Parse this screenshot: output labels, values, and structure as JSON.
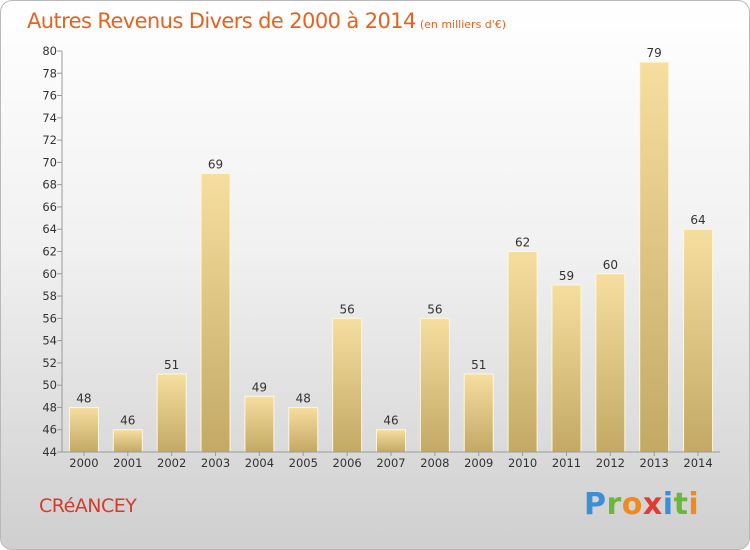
{
  "header": {
    "title": "Autres Revenus Divers de 2000 à 2014",
    "subtitle": "(en milliers d'€)"
  },
  "footer": {
    "commune": "CRéANCEY",
    "brand_letters": [
      {
        "char": "P",
        "color": "#3a8fd8"
      },
      {
        "char": "r",
        "color": "#6bb73a"
      },
      {
        "char": "o",
        "color": "#f08a1d"
      },
      {
        "char": "x",
        "color": "#e23c31"
      },
      {
        "char": "i",
        "color": "#3a8fd8"
      },
      {
        "char": "t",
        "color": "#6bb73a"
      },
      {
        "char": "i",
        "color": "#f08a1d"
      }
    ]
  },
  "chart_data": {
    "type": "bar",
    "categories": [
      "2000",
      "2001",
      "2002",
      "2003",
      "2004",
      "2005",
      "2006",
      "2007",
      "2008",
      "2009",
      "2010",
      "2011",
      "2012",
      "2013",
      "2014"
    ],
    "values": [
      48,
      46,
      51,
      69,
      49,
      48,
      56,
      46,
      56,
      51,
      62,
      59,
      60,
      79,
      64
    ],
    "ylim": [
      44,
      80
    ],
    "ytick_step": 2,
    "grid": false,
    "bar_color": "#e9cf8a"
  }
}
